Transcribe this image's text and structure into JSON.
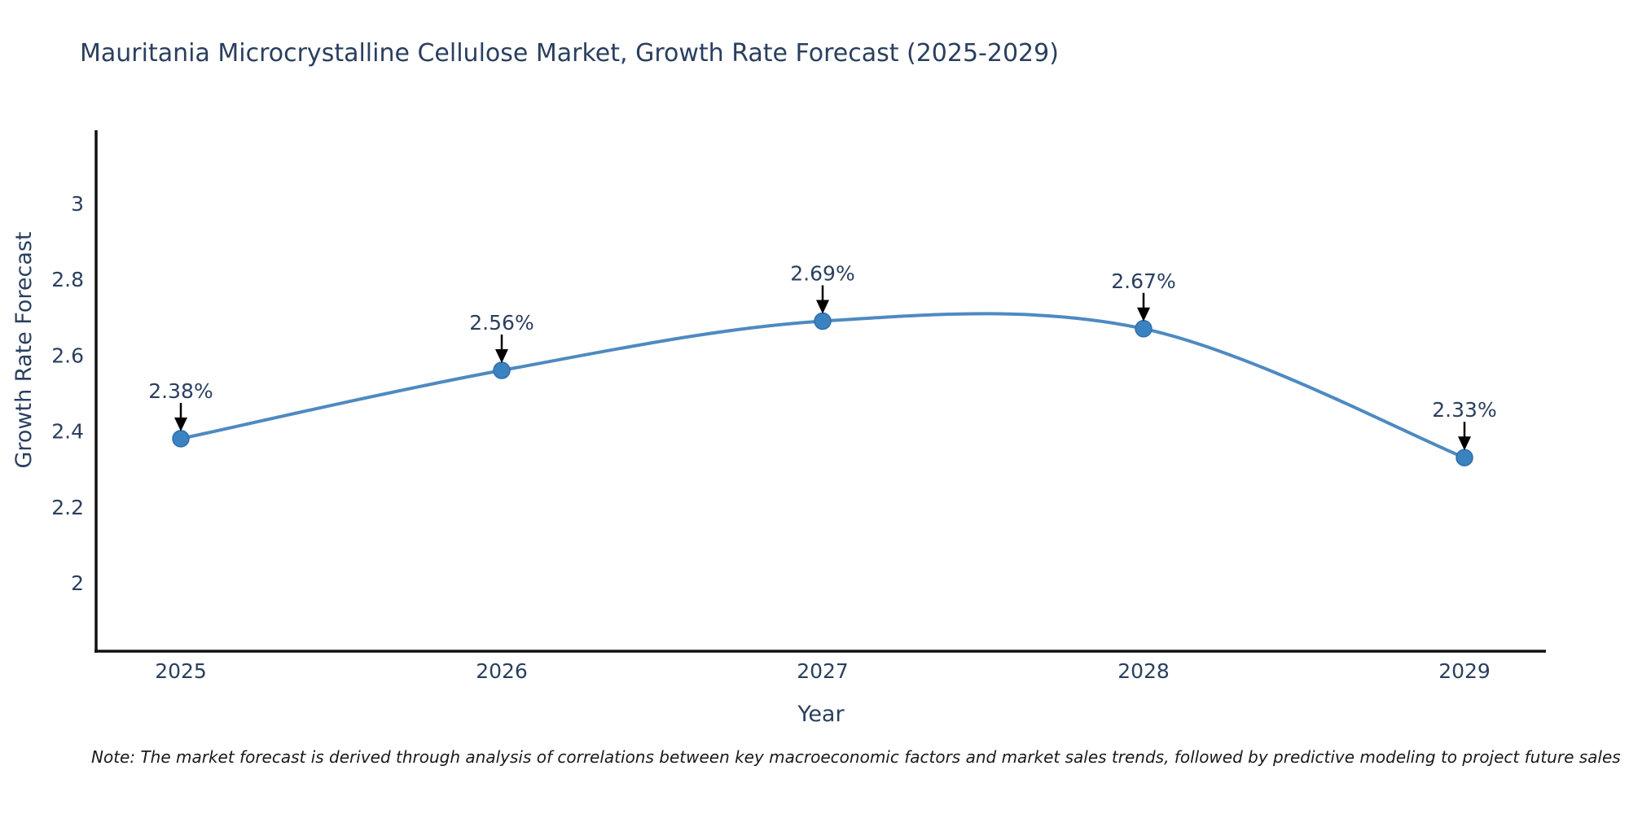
{
  "title": "Mauritania Microcrystalline Cellulose Market, Growth Rate Forecast (2025-2029)",
  "note": "Note: The market forecast is derived through analysis of correlations between key macroeconomic factors and market sales trends, followed by predictive modeling to project future sales",
  "chart_data": {
    "type": "line",
    "title": "Mauritania Microcrystalline Cellulose Market, Growth Rate Forecast (2025-2029)",
    "xlabel": "Year",
    "ylabel": "Growth Rate Forecast",
    "categories": [
      "2025",
      "2026",
      "2027",
      "2028",
      "2029"
    ],
    "series": [
      {
        "name": "Growth Rate Forecast",
        "values": [
          2.38,
          2.56,
          2.69,
          2.67,
          2.33
        ]
      }
    ],
    "point_labels": [
      "2.38%",
      "2.56%",
      "2.69%",
      "2.67%",
      "2.33%"
    ],
    "yticks": [
      2,
      2.2,
      2.4,
      2.6,
      2.8,
      3
    ],
    "ytick_labels": [
      "2",
      "2.2",
      "2.4",
      "2.6",
      "2.8",
      "3"
    ],
    "ylim": [
      1.82,
      3.19
    ],
    "line_shape": "spline",
    "grid": false,
    "legend": "none",
    "annotation_style": "label-with-down-arrow",
    "colors": {
      "line": "#4e8ac0",
      "marker": "#3b82c0",
      "marker_edge": "#2f6fae",
      "axis_line": "#111111",
      "text": "#2a3f5f",
      "annotation_arrow": "#000000",
      "note_text": "#1a1a1a",
      "background": "#ffffff"
    }
  }
}
